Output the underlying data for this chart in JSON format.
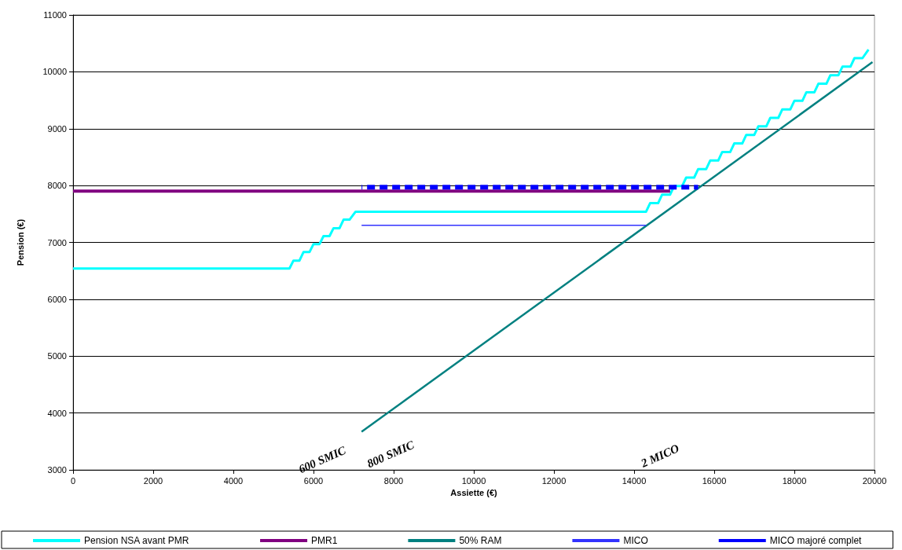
{
  "chart_data": {
    "type": "line",
    "xlabel": "Assiette (€)",
    "ylabel": "Pension (€)",
    "xlim": [
      0,
      20000
    ],
    "xticks": [
      0,
      2000,
      4000,
      6000,
      8000,
      10000,
      12000,
      14000,
      16000,
      18000,
      20000
    ],
    "ylim": [
      3000,
      11000
    ],
    "yticks": [
      3000,
      4000,
      5000,
      6000,
      7000,
      8000,
      9000,
      10000,
      11000
    ],
    "grid": "y",
    "legend": "bottom",
    "marker": "none",
    "series": [
      {
        "name": "Pension NSA avant PMR",
        "color": "#00ffff",
        "x": [
          0,
          5400,
          5500,
          5650,
          5750,
          5900,
          6000,
          6150,
          6250,
          6400,
          6500,
          6650,
          6750,
          6900,
          7050,
          14300,
          14400,
          14600,
          14700,
          14900,
          15000,
          15200,
          15300,
          15500,
          15600,
          15800,
          15900,
          16100,
          16200,
          16400,
          16500,
          16700,
          16800,
          17000,
          17100,
          17300,
          17400,
          17600,
          17700,
          17900,
          18000,
          18200,
          18300,
          18500,
          18600,
          18800,
          18900,
          19100,
          19200,
          19400,
          19500,
          19700,
          19850
        ],
        "values": [
          6540,
          6540,
          6680,
          6680,
          6830,
          6830,
          6970,
          6970,
          7110,
          7110,
          7250,
          7250,
          7400,
          7400,
          7540,
          7540,
          7690,
          7690,
          7840,
          7840,
          7990,
          7990,
          8140,
          8140,
          8290,
          8290,
          8440,
          8440,
          8590,
          8590,
          8740,
          8740,
          8890,
          8890,
          9040,
          9040,
          9190,
          9190,
          9340,
          9340,
          9490,
          9490,
          9640,
          9640,
          9790,
          9790,
          9940,
          9940,
          10090,
          10090,
          10240,
          10240,
          10390
        ]
      },
      {
        "name": "PMR1",
        "color": "#800080",
        "x": [
          0,
          14900
        ],
        "values": [
          7900,
          7900
        ]
      },
      {
        "name": "50% RAM",
        "color": "#008080",
        "x": [
          7200,
          19950
        ],
        "values": [
          3670,
          10170
        ]
      },
      {
        "name": "MICO",
        "color": "#3333ff",
        "x": [
          7200,
          14300
        ],
        "values": [
          7300,
          7300
        ]
      },
      {
        "name": "MICO majoré complet",
        "color": "#0000ff",
        "line_style": "dashed",
        "x": [
          7200,
          15600
        ],
        "values": [
          7970,
          7970
        ]
      }
    ],
    "annotations": [
      "600 SMIC",
      "800 SMIC",
      "2 MICO"
    ]
  }
}
